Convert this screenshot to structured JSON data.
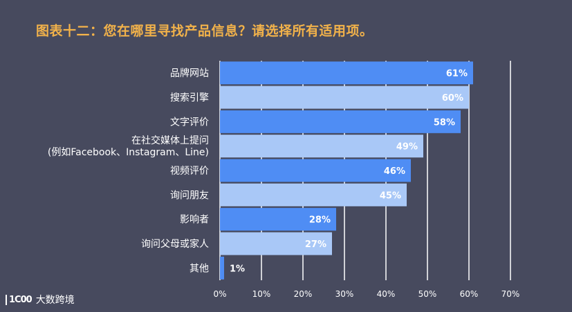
{
  "title": "图表十二：您在哪里寻找产品信息？请选择所有适用项。",
  "watermark": {
    "logo_text": "1C00",
    "text": "大数跨境"
  },
  "colors": {
    "bar_dark": "#4f8df4",
    "bar_light": "#a9c8f7",
    "background": "#474a5e",
    "title": "#f2b24a"
  },
  "chart_data": {
    "type": "bar",
    "orientation": "horizontal",
    "title": "图表十二：您在哪里寻找产品信息？请选择所有适用项。",
    "categories": [
      [
        "品牌网站"
      ],
      [
        "搜索引擎"
      ],
      [
        "文字评价"
      ],
      [
        "在社交媒体上提问",
        "(例如Facebook、Instagram、Line)"
      ],
      [
        "视频评价"
      ],
      [
        "询问朋友"
      ],
      [
        "影响者"
      ],
      [
        "询问父母或家人"
      ],
      [
        "其他"
      ]
    ],
    "values": [
      61,
      60,
      58,
      49,
      46,
      45,
      28,
      27,
      1
    ],
    "value_labels": [
      "61%",
      "60%",
      "58%",
      "49%",
      "46%",
      "45%",
      "28%",
      "27%",
      "1%"
    ],
    "xlim": [
      0,
      70
    ],
    "xticks": [
      "0%",
      "10%",
      "20%",
      "30%",
      "40%",
      "50%",
      "60%",
      "70%"
    ],
    "grid": true,
    "xlabel": "",
    "ylabel": ""
  }
}
